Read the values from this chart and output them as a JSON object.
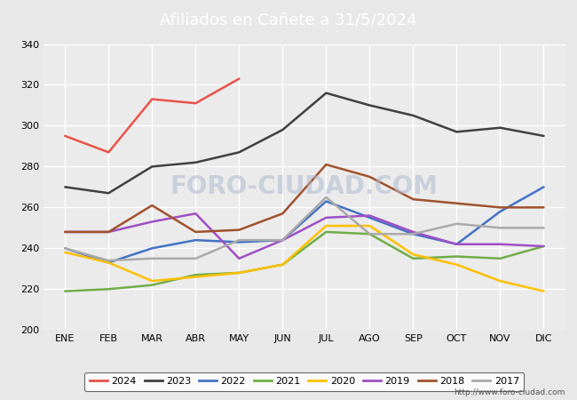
{
  "title": "Afiliados en Cañete a 31/5/2024",
  "title_color": "#ffffff",
  "title_bg_color": "#4472c4",
  "months": [
    "ENE",
    "FEB",
    "MAR",
    "ABR",
    "MAY",
    "JUN",
    "JUL",
    "AGO",
    "SEP",
    "OCT",
    "NOV",
    "DIC"
  ],
  "ylim": [
    200,
    340
  ],
  "yticks": [
    200,
    220,
    240,
    260,
    280,
    300,
    320,
    340
  ],
  "series": {
    "2024": {
      "color": "#e8534a",
      "data": [
        295,
        287,
        313,
        311,
        323,
        null,
        null,
        null,
        null,
        null,
        null,
        null
      ]
    },
    "2023": {
      "color": "#404040",
      "data": [
        270,
        267,
        280,
        282,
        287,
        298,
        316,
        310,
        305,
        297,
        299,
        295
      ]
    },
    "2022": {
      "color": "#4472c4",
      "data": [
        240,
        233,
        240,
        244,
        243,
        244,
        263,
        255,
        247,
        242,
        258,
        270
      ]
    },
    "2021": {
      "color": "#70ad47",
      "data": [
        219,
        220,
        222,
        227,
        228,
        232,
        248,
        247,
        235,
        236,
        235,
        241
      ]
    },
    "2020": {
      "color": "#ffc000",
      "data": [
        238,
        233,
        224,
        226,
        228,
        232,
        251,
        251,
        237,
        232,
        224,
        219
      ]
    },
    "2019": {
      "color": "#9e4fc6",
      "data": [
        248,
        248,
        253,
        257,
        235,
        244,
        255,
        256,
        248,
        242,
        242,
        241
      ]
    },
    "2018": {
      "color": "#a0522d",
      "data": [
        248,
        248,
        261,
        248,
        249,
        257,
        281,
        275,
        264,
        262,
        260,
        260
      ]
    },
    "2017": {
      "color": "#aaaaaa",
      "data": [
        240,
        234,
        235,
        235,
        244,
        244,
        265,
        247,
        247,
        252,
        250,
        250
      ]
    }
  },
  "watermark": "FORO-CIUDAD.COM",
  "url": "http://www.foro-ciudad.com",
  "background_color": "#e8e8e8",
  "plot_bg_color": "#ebebeb"
}
